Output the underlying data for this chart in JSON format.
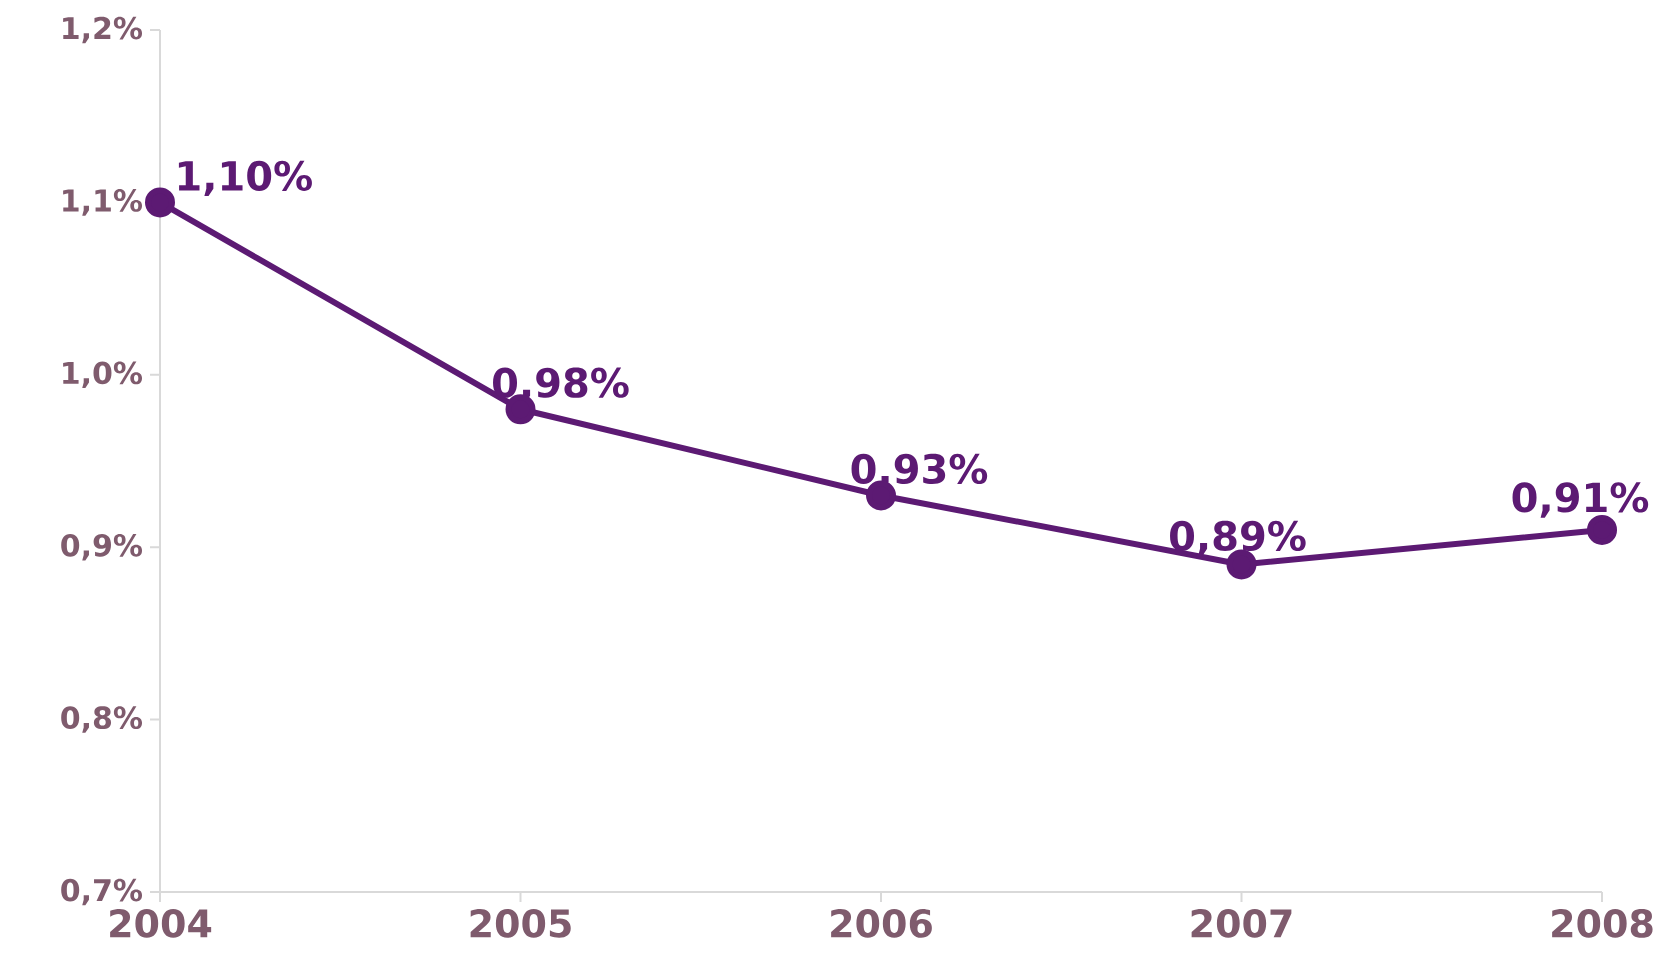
{
  "chart_data": {
    "type": "line",
    "categories": [
      "2004",
      "2005",
      "2006",
      "2007",
      "2008"
    ],
    "values": [
      1.1,
      0.98,
      0.93,
      0.89,
      0.91
    ],
    "color": "#5c1a73",
    "value_labels": [
      "1,10%",
      "0,98%",
      "0,93%",
      "0,89%",
      "0,91%"
    ],
    "ylim": [
      0.7,
      1.2
    ],
    "yticks": [
      {
        "value": 0.7,
        "label": "0,7%"
      },
      {
        "value": 0.8,
        "label": "0,8%"
      },
      {
        "value": 0.9,
        "label": "0,9%"
      },
      {
        "value": 1.0,
        "label": "1,0%"
      },
      {
        "value": 1.1,
        "label": "1,1%"
      },
      {
        "value": 1.2,
        "label": "1,2%"
      }
    ],
    "marker": "circle",
    "line_style": "solid"
  }
}
